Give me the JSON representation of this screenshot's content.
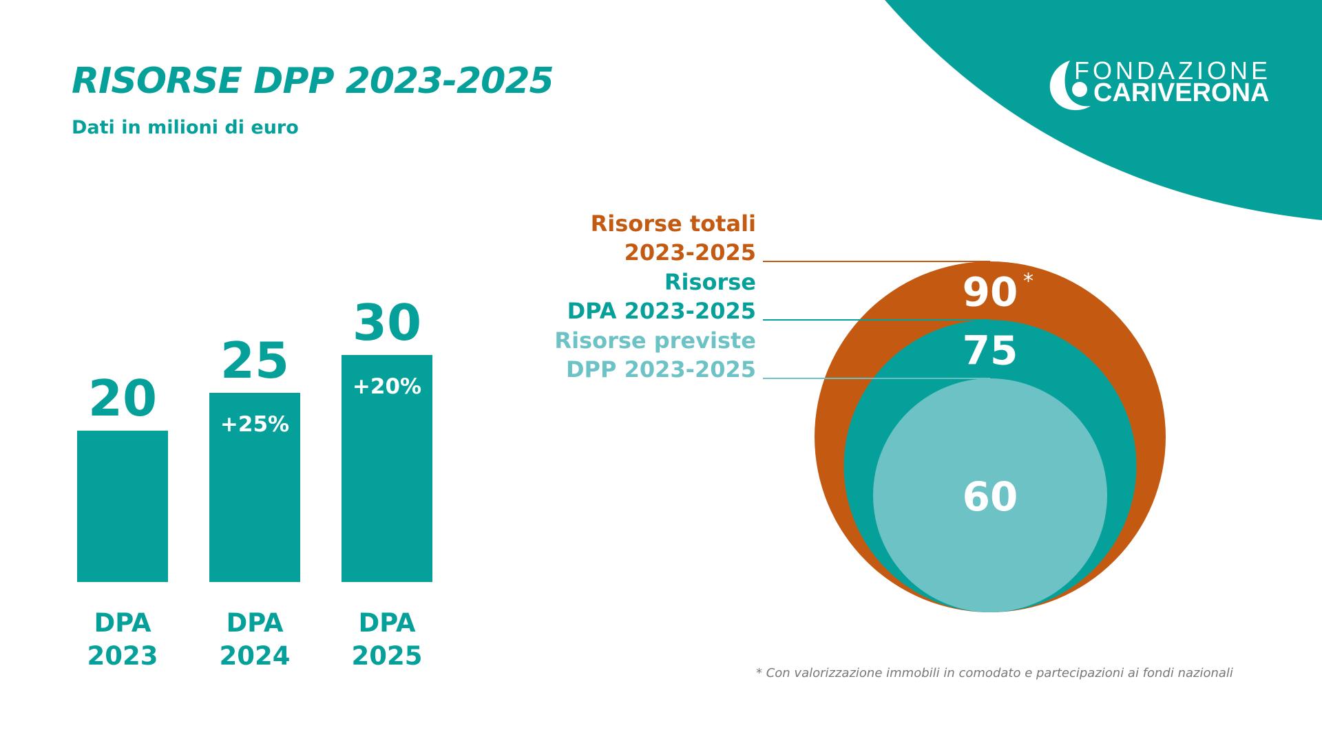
{
  "page": {
    "title": "RISORSE DPP 2023-2025",
    "subtitle": "Dati in milioni di euro",
    "footnote": "* Con valorizzazione immobili in comodato e partecipazioni ai fondi nazionali"
  },
  "logo": {
    "line1": "FONDAZIONE",
    "line2": "CARIVERONA"
  },
  "colors": {
    "teal": "#06a09a",
    "orange": "#c45a12",
    "light_teal": "#6cc2c5",
    "white": "#ffffff"
  },
  "chart_data": [
    {
      "type": "bar",
      "categories": [
        "DPA 2023",
        "DPA 2024",
        "DPA 2025"
      ],
      "category_lines": [
        [
          "DPA",
          "2023"
        ],
        [
          "DPA",
          "2024"
        ],
        [
          "DPA",
          "2025"
        ]
      ],
      "values": [
        20,
        25,
        30
      ],
      "value_labels": [
        "20",
        "25",
        "30"
      ],
      "growth_labels": [
        "",
        "+25%",
        "+20%"
      ],
      "ylim": [
        0,
        30
      ],
      "grid": false,
      "color": "#06a09a"
    },
    {
      "type": "nested-circles",
      "items": [
        {
          "label_lines": [
            "Risorse totali",
            "2023-2025"
          ],
          "value": 90,
          "value_label": "90",
          "marker": "*",
          "color": "#c45a12"
        },
        {
          "label_lines": [
            "Risorse",
            "DPA 2023-2025"
          ],
          "value": 75,
          "value_label": "75",
          "marker": "",
          "color": "#06a09a"
        },
        {
          "label_lines": [
            "Risorse previste",
            "DPP 2023-2025"
          ],
          "value": 60,
          "value_label": "60",
          "marker": "",
          "color": "#6cc2c5"
        }
      ]
    }
  ]
}
